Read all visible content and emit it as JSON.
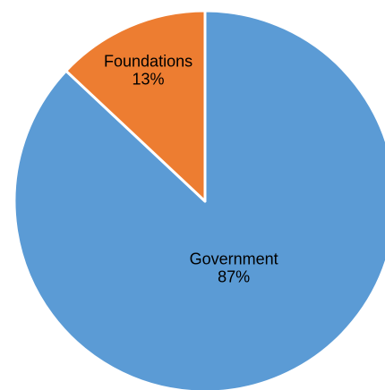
{
  "chart_data": {
    "type": "pie",
    "title": "",
    "slices": [
      {
        "label": "Government",
        "value": 87,
        "value_label": "87%",
        "color": "#5B9BD5"
      },
      {
        "label": "Foundations",
        "value": 13,
        "value_label": "13%",
        "color": "#ED7D31"
      }
    ],
    "start": "12 o'clock",
    "direction": "clockwise",
    "legend": "none",
    "data_labels": "inside, category name and percentage"
  }
}
